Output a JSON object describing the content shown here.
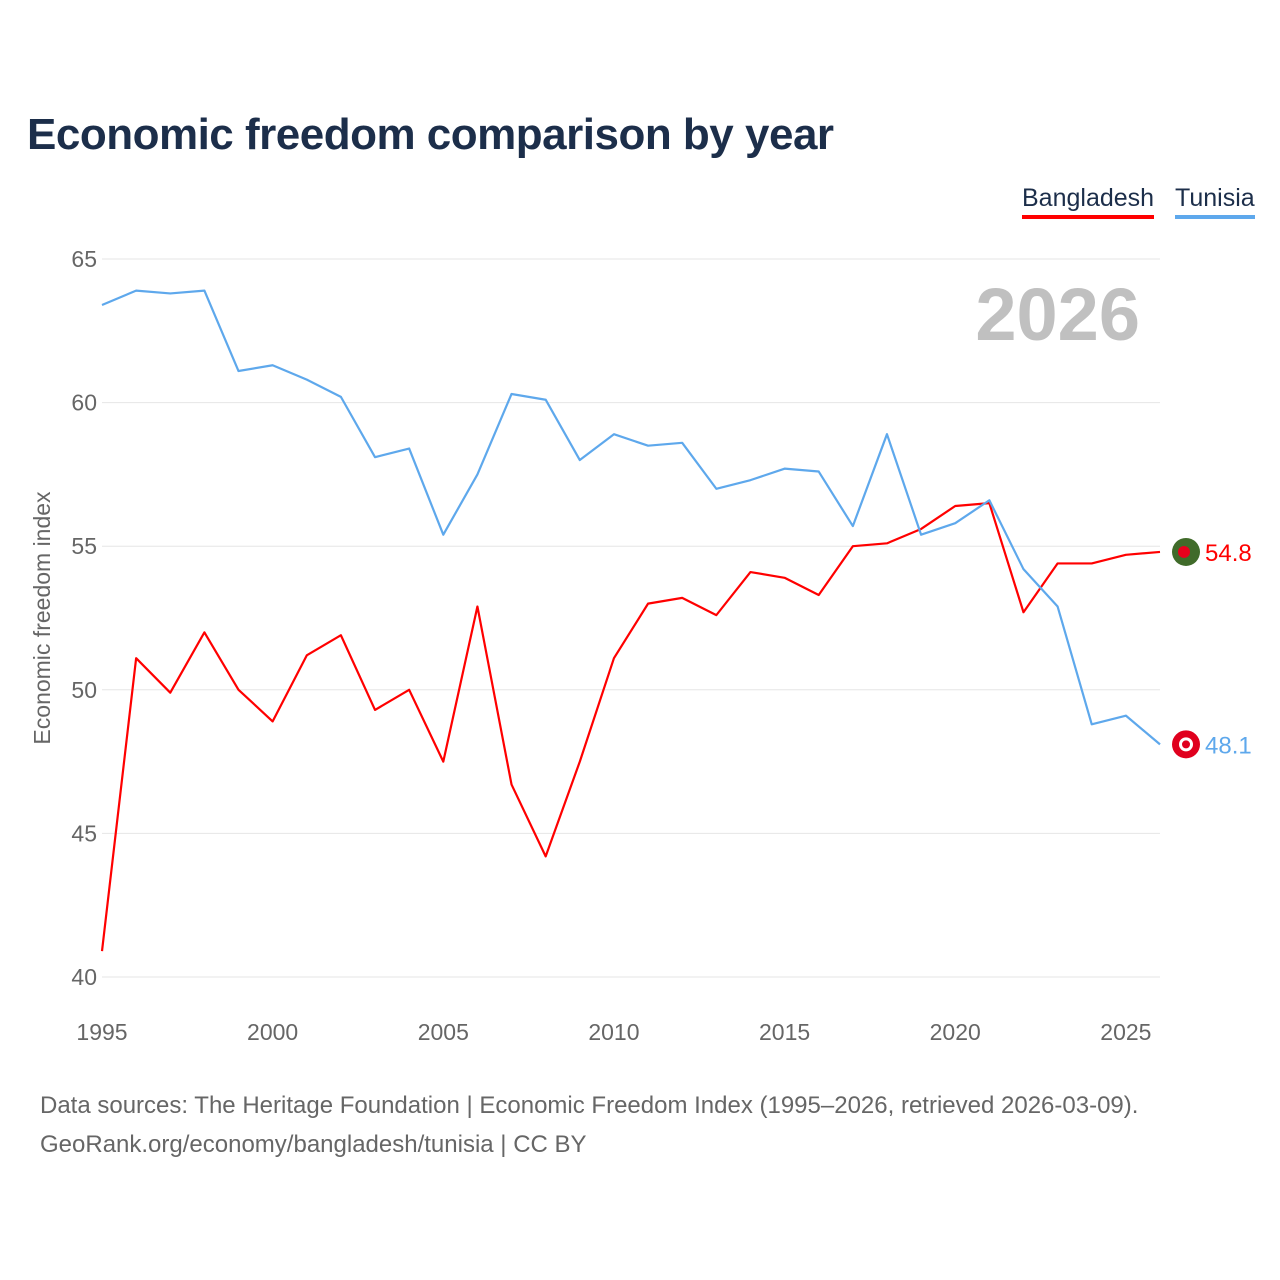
{
  "chart_data": {
    "type": "line",
    "title": "Economic freedom comparison by year",
    "ylabel": "Economic freedom index",
    "xlabel": "",
    "xlim": [
      1995,
      2026
    ],
    "ylim": [
      40,
      65
    ],
    "yticks": [
      40,
      45,
      50,
      55,
      60,
      65
    ],
    "xticks": [
      1995,
      2000,
      2005,
      2010,
      2015,
      2020,
      2025
    ],
    "grid": true,
    "legend_position": "top-right",
    "year_label": "2026",
    "x": [
      1995,
      1996,
      1997,
      1998,
      1999,
      2000,
      2001,
      2002,
      2003,
      2004,
      2005,
      2006,
      2007,
      2008,
      2009,
      2010,
      2011,
      2012,
      2013,
      2014,
      2015,
      2016,
      2017,
      2018,
      2019,
      2020,
      2021,
      2022,
      2023,
      2024,
      2025,
      2026
    ],
    "series": [
      {
        "name": "Bangladesh",
        "color": "#ff0000",
        "end_label": "54.8",
        "values": [
          40.9,
          51.1,
          49.9,
          52.0,
          50.0,
          48.9,
          51.2,
          51.9,
          49.3,
          50.0,
          47.5,
          52.9,
          46.7,
          44.2,
          47.5,
          51.1,
          53.0,
          53.2,
          52.6,
          54.1,
          53.9,
          53.3,
          55.0,
          55.1,
          55.6,
          56.4,
          56.5,
          52.7,
          54.4,
          54.4,
          54.7,
          54.8
        ]
      },
      {
        "name": "Tunisia",
        "color": "#5ea8ec",
        "end_label": "48.1",
        "values": [
          63.4,
          63.9,
          63.8,
          63.9,
          61.1,
          61.3,
          60.8,
          60.2,
          58.1,
          58.4,
          55.4,
          57.5,
          60.3,
          60.1,
          58.0,
          58.9,
          58.5,
          58.6,
          57.0,
          57.3,
          57.7,
          57.6,
          55.7,
          58.9,
          55.4,
          55.8,
          56.6,
          54.2,
          52.9,
          48.8,
          49.1,
          48.1
        ]
      }
    ]
  },
  "source": {
    "line1": "Data sources: The Heritage Foundation | Economic Freedom Index (1995–2026, retrieved 2026-03-09).",
    "line2": "GeoRank.org/economy/bangladesh/tunisia | CC BY"
  }
}
